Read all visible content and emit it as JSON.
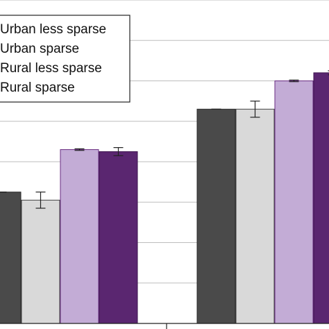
{
  "chart_data": {
    "type": "bar",
    "title": "",
    "xlabel": "",
    "ylabel": "",
    "ylim": [
      0,
      8
    ],
    "grid": "horizontal",
    "legend_placement": "top-left",
    "categories": [
      "",
      ""
    ],
    "series": [
      {
        "name": "Urban less sparse",
        "color": "#4a4a4a",
        "edge": "#2a2a2a",
        "values": [
          3.25,
          5.3
        ],
        "errors": [
          0.0,
          0.0
        ]
      },
      {
        "name": "Urban sparse",
        "color": "#d9d9d9",
        "edge": "#444444",
        "values": [
          3.05,
          5.3
        ],
        "errors": [
          0.2,
          0.2
        ]
      },
      {
        "name": "Rural less sparse",
        "color": "#c3acd6",
        "edge": "#6a2d82",
        "values": [
          4.3,
          6.0
        ],
        "errors": [
          0.02,
          0.02
        ]
      },
      {
        "name": "Rural sparse",
        "color": "#5a2670",
        "edge": "#3f1650",
        "values": [
          4.25,
          6.2
        ],
        "errors": [
          0.1,
          0.05
        ]
      }
    ]
  }
}
